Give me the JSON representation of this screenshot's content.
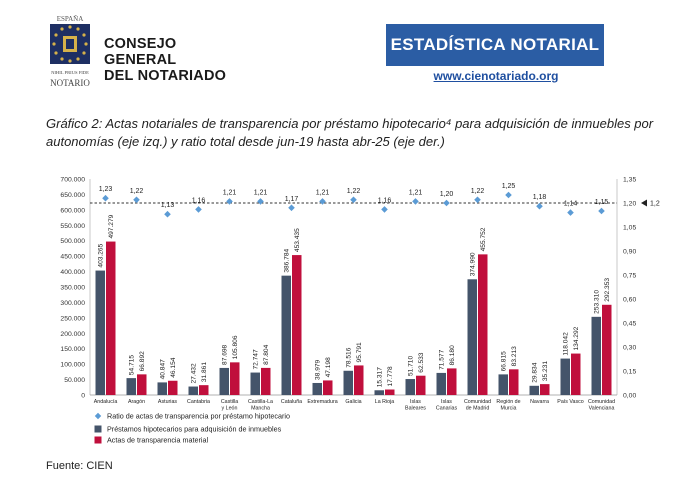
{
  "header": {
    "cgn_line1": "CONSEJO GENERAL",
    "cgn_line2": "DEL NOTARIADO",
    "seal_top": "ESPAÑA",
    "seal_motto": "NIHIL PRIUS FIDE",
    "seal_bottom": "NOTARIO",
    "estadistica_label": "ESTADÍSTICA NOTARIAL",
    "url": "www.cienotariado.org"
  },
  "caption": "Gráfico 2: Actas notariales de transparencia por préstamo hipotecario⁴ para adquisición de inmuebles por autonomías (eje izq.) y ratio total desde jun-19 hasta abr-25 (eje der.)",
  "source": "Fuente: CIEN",
  "colors": {
    "prestamos": "#44546a",
    "actas": "#c00f3c",
    "ratio": "#5b9bd5",
    "url": "#1f4fa0",
    "brand": "#2b5da4"
  },
  "chart_data": {
    "type": "bar",
    "categories": [
      "Andalucía",
      "Aragón",
      "Asturias",
      "Cantabria",
      "Castilla y León",
      "Castilla-La Mancha",
      "Cataluña",
      "Extremadura",
      "Galicia",
      "La Rioja",
      "Islas Baleares",
      "Islas Canarias",
      "Comunidad de Madrid",
      "Región de Murcia",
      "Navarra",
      "País Vasco",
      "Comunidad Valenciana"
    ],
    "category_lines": [
      [
        "Andalucía"
      ],
      [
        "Aragón"
      ],
      [
        "Asturias"
      ],
      [
        "Cantabria"
      ],
      [
        "Castilla",
        "y León"
      ],
      [
        "Castilla-La",
        "Mancha"
      ],
      [
        "Cataluña"
      ],
      [
        "Extremadura"
      ],
      [
        "Galicia"
      ],
      [
        "La Rioja"
      ],
      [
        "Islas",
        "Baleares"
      ],
      [
        "Islas",
        "Canarias"
      ],
      [
        "Comunidad",
        "de Madrid"
      ],
      [
        "Región de",
        "Murcia"
      ],
      [
        "Navarra"
      ],
      [
        "País Vasco"
      ],
      [
        "Comunidad",
        "Valenciana"
      ]
    ],
    "series": [
      {
        "name": "Préstamos hipotecarios para adquisición de inmuebles",
        "axis": "left",
        "values": [
          403265,
          54715,
          40847,
          27432,
          87698,
          72747,
          386784,
          38979,
          78516,
          15317,
          51710,
          71577,
          374990,
          66815,
          29834,
          118042,
          253310
        ],
        "labels": [
          "403.265",
          "54.715",
          "40.847",
          "27.432",
          "87.698",
          "72.747",
          "386.784",
          "38.979",
          "78.516",
          "15.317",
          "51.710",
          "71.577",
          "374.990",
          "66.815",
          "29.834",
          "118.042",
          "253.310"
        ]
      },
      {
        "name": "Actas de transparencia material",
        "axis": "left",
        "values": [
          497279,
          66892,
          46154,
          31861,
          105806,
          87804,
          453435,
          47198,
          95791,
          17778,
          62533,
          86180,
          455752,
          83213,
          35231,
          134292,
          292353
        ],
        "labels": [
          "497.279",
          "66.892",
          "46.154",
          "31.861",
          "105.806",
          "87.804",
          "453.435",
          "47.198",
          "95.791",
          "17.778",
          "62.533",
          "86.180",
          "455.752",
          "83.213",
          "35.231",
          "134.292",
          "292.353"
        ]
      },
      {
        "name": "Ratio de actas de transparencia por préstamo hipotecario",
        "axis": "right",
        "values": [
          1.23,
          1.22,
          1.13,
          1.16,
          1.21,
          1.21,
          1.17,
          1.21,
          1.22,
          1.16,
          1.21,
          1.2,
          1.22,
          1.25,
          1.18,
          1.14,
          1.15
        ],
        "labels": [
          "1,23",
          "1,22",
          "1,13",
          "1,16",
          "1,21",
          "1,21",
          "1,17",
          "1,21",
          "1,22",
          "1,16",
          "1,21",
          "1,20",
          "1,22",
          "1,25",
          "1,18",
          "1,14",
          "1,15"
        ]
      }
    ],
    "reference_line": {
      "axis": "right",
      "value": 1.2,
      "label": "1,2"
    },
    "y_left": {
      "ylim": [
        0,
        700000
      ],
      "ticks": [
        "0",
        "50.000",
        "100.000",
        "150.000",
        "200.000",
        "250.000",
        "300.000",
        "350.000",
        "400.000",
        "450.000",
        "500.000",
        "550.000",
        "600.000",
        "650.000",
        "700.000"
      ]
    },
    "y_right": {
      "ylim": [
        0,
        1.35
      ],
      "ticks": [
        "0,00",
        "0,15",
        "0,30",
        "0,45",
        "0,60",
        "0,75",
        "0,90",
        "1,05",
        "1,20",
        "1,35"
      ]
    },
    "legend_position": "bottom-left"
  }
}
